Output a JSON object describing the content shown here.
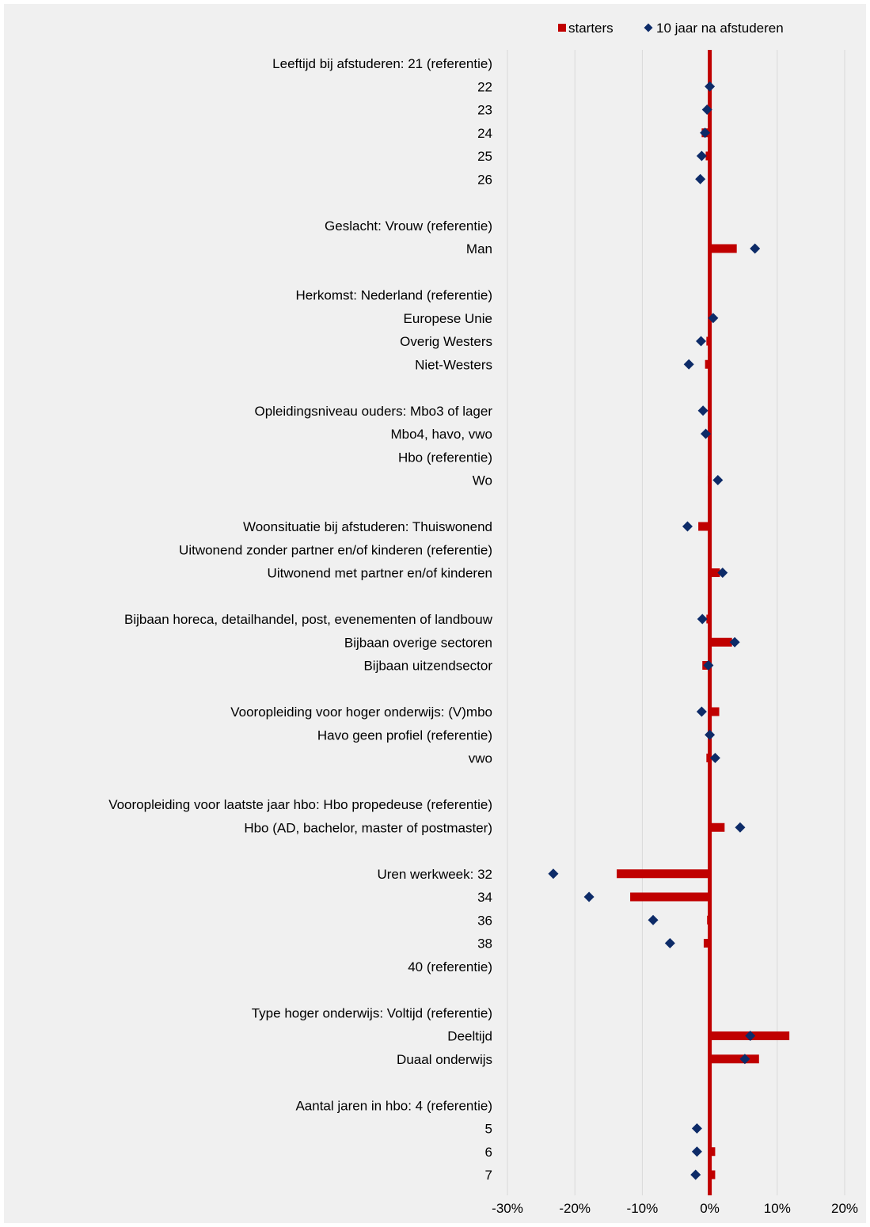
{
  "chart_data": {
    "type": "bar",
    "orientation": "horizontal",
    "x_axis": {
      "min": -0.3,
      "max": 0.2,
      "step": 0.1,
      "tick_labels": [
        "-30%",
        "-20%",
        "-10%",
        "0%",
        "10%",
        "20%"
      ]
    },
    "grid": true,
    "legend": {
      "position": "top-right",
      "items": [
        {
          "name": "starters",
          "marker": "square",
          "color": "#c00000"
        },
        {
          "name": "10 jaar na afstuderen",
          "marker": "diamond",
          "color": "#0d2b68"
        }
      ]
    },
    "series": [
      {
        "name": "starters",
        "type": "bar",
        "color": "#c00000"
      },
      {
        "name": "10 jaar na afstuderen",
        "type": "marker",
        "color": "#0d2b68"
      }
    ],
    "categories": [
      {
        "label": "Leeftijd bij afstuderen: 21 (referentie)",
        "starters": null,
        "tien_jaar": null
      },
      {
        "label": "22",
        "starters": 0.0,
        "tien_jaar": 0.0
      },
      {
        "label": "23",
        "starters": 0.0,
        "tien_jaar": -0.004
      },
      {
        "label": "24",
        "starters": -0.012,
        "tien_jaar": -0.007
      },
      {
        "label": "25",
        "starters": -0.006,
        "tien_jaar": -0.012
      },
      {
        "label": "26",
        "starters": 0.0,
        "tien_jaar": -0.014
      },
      {
        "label": "",
        "starters": null,
        "tien_jaar": null
      },
      {
        "label": "Geslacht: Vrouw (referentie)",
        "starters": null,
        "tien_jaar": null
      },
      {
        "label": "Man",
        "starters": 0.04,
        "tien_jaar": 0.067
      },
      {
        "label": "",
        "starters": null,
        "tien_jaar": null
      },
      {
        "label": "Herkomst: Nederland (referentie)",
        "starters": null,
        "tien_jaar": null
      },
      {
        "label": "Europese Unie",
        "starters": 0.0,
        "tien_jaar": 0.005
      },
      {
        "label": "Overig Westers",
        "starters": -0.005,
        "tien_jaar": -0.013
      },
      {
        "label": "Niet-Westers",
        "starters": -0.007,
        "tien_jaar": -0.031
      },
      {
        "label": "",
        "starters": null,
        "tien_jaar": null
      },
      {
        "label": "Opleidingsniveau ouders: Mbo3 of lager",
        "starters": 0.0,
        "tien_jaar": -0.01
      },
      {
        "label": "Mbo4, havo, vwo",
        "starters": 0.0,
        "tien_jaar": -0.006
      },
      {
        "label": "Hbo (referentie)",
        "starters": null,
        "tien_jaar": null
      },
      {
        "label": "Wo",
        "starters": -0.003,
        "tien_jaar": 0.012
      },
      {
        "label": "",
        "starters": null,
        "tien_jaar": null
      },
      {
        "label": "Woonsituatie bij afstuderen: Thuiswonend",
        "starters": -0.017,
        "tien_jaar": -0.033
      },
      {
        "label": "Uitwonend zonder partner en/of kinderen (referentie)",
        "starters": null,
        "tien_jaar": null
      },
      {
        "label": "Uitwonend met partner en/of kinderen",
        "starters": 0.015,
        "tien_jaar": 0.019
      },
      {
        "label": "",
        "starters": null,
        "tien_jaar": null
      },
      {
        "label": "Bijbaan horeca, detailhandel, post, evenementen of landbouw",
        "starters": -0.005,
        "tien_jaar": -0.011
      },
      {
        "label": "Bijbaan overige sectoren",
        "starters": 0.033,
        "tien_jaar": 0.037
      },
      {
        "label": "Bijbaan uitzendsector",
        "starters": -0.011,
        "tien_jaar": -0.002
      },
      {
        "label": "",
        "starters": null,
        "tien_jaar": null
      },
      {
        "label": "Vooropleiding voor hoger onderwijs: (V)mbo",
        "starters": 0.014,
        "tien_jaar": -0.012
      },
      {
        "label": "Havo geen profiel (referentie)",
        "starters": null,
        "tien_jaar": 0.0
      },
      {
        "label": "vwo",
        "starters": -0.005,
        "tien_jaar": 0.008
      },
      {
        "label": "",
        "starters": null,
        "tien_jaar": null
      },
      {
        "label": "Vooropleiding voor laatste jaar hbo: Hbo propedeuse (referentie)",
        "starters": null,
        "tien_jaar": null
      },
      {
        "label": "Hbo (AD, bachelor, master of postmaster)",
        "starters": 0.022,
        "tien_jaar": 0.045
      },
      {
        "label": "",
        "starters": null,
        "tien_jaar": null
      },
      {
        "label": "Uren werkweek: 32",
        "starters": -0.138,
        "tien_jaar": -0.232
      },
      {
        "label": "34",
        "starters": -0.118,
        "tien_jaar": -0.179
      },
      {
        "label": "36",
        "starters": -0.004,
        "tien_jaar": -0.084
      },
      {
        "label": "38",
        "starters": -0.009,
        "tien_jaar": -0.059
      },
      {
        "label": "40 (referentie)",
        "starters": null,
        "tien_jaar": null
      },
      {
        "label": "",
        "starters": null,
        "tien_jaar": null
      },
      {
        "label": "Type hoger onderwijs: Voltijd (referentie)",
        "starters": null,
        "tien_jaar": null
      },
      {
        "label": "Deeltijd",
        "starters": 0.118,
        "tien_jaar": 0.06
      },
      {
        "label": "Duaal onderwijs",
        "starters": 0.073,
        "tien_jaar": 0.052
      },
      {
        "label": "",
        "starters": null,
        "tien_jaar": null
      },
      {
        "label": "Aantal jaren in hbo: 4 (referentie)",
        "starters": null,
        "tien_jaar": null
      },
      {
        "label": "5",
        "starters": 0.0,
        "tien_jaar": -0.019
      },
      {
        "label": "6",
        "starters": 0.008,
        "tien_jaar": -0.019
      },
      {
        "label": "7",
        "starters": 0.008,
        "tien_jaar": -0.021
      }
    ]
  }
}
